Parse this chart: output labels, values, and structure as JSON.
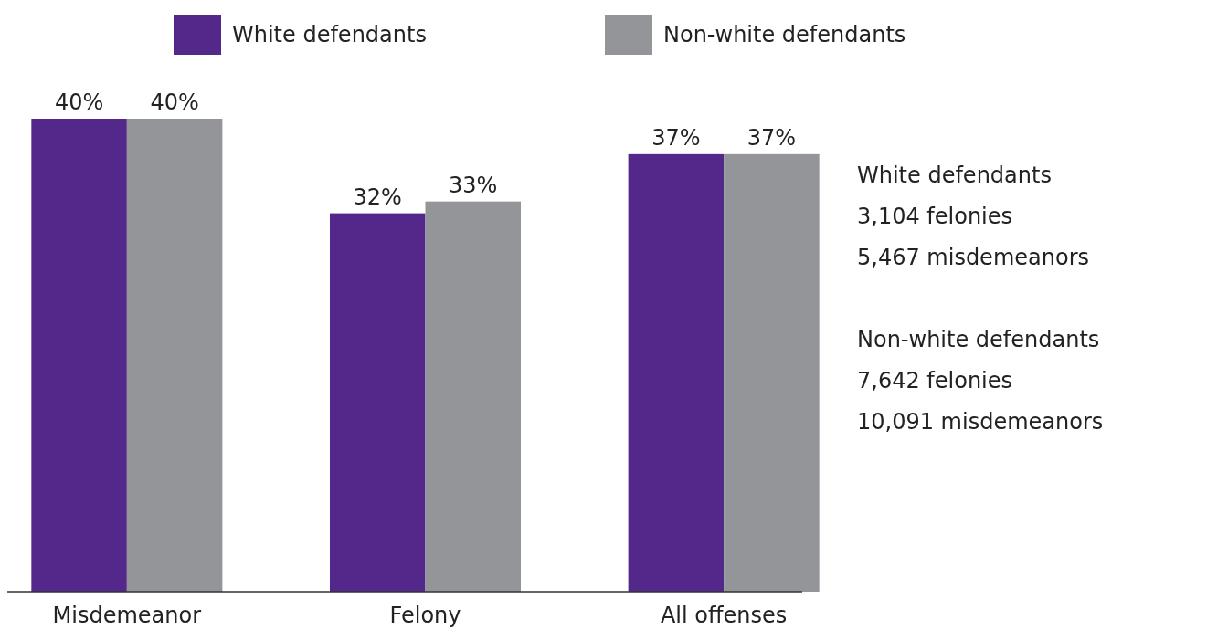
{
  "chart_data": {
    "type": "bar",
    "categories": [
      "Misdemeanor",
      "Felony",
      "All offenses"
    ],
    "series": [
      {
        "name": "White defendants",
        "color": "#54288a",
        "values": [
          40,
          32,
          37
        ],
        "value_labels": [
          "40%",
          "32%",
          "37%"
        ]
      },
      {
        "name": "Non-white defendants",
        "color": "#939598",
        "values": [
          40,
          33,
          37
        ],
        "value_labels": [
          "40%",
          "33%",
          "37%"
        ]
      }
    ],
    "legend": "top",
    "annotations": [
      "White defendants",
      "3,104 felonies",
      "5,467 misdemeanors",
      "Non-white defendants",
      "7,642 felonies",
      "10,091 misdemeanors"
    ]
  }
}
